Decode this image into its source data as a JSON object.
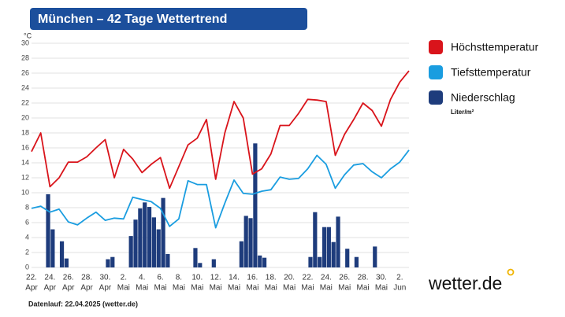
{
  "chart_data": {
    "type": "line",
    "title": "München – 42 Tage Wettertrend",
    "y_unit": "°C",
    "categories": [
      "22.",
      null,
      "24.",
      null,
      "26.",
      null,
      "28.",
      null,
      "30.",
      null,
      "2.",
      null,
      "4.",
      null,
      "6.",
      null,
      "8.",
      null,
      "10.",
      null,
      "12.",
      null,
      "14.",
      null,
      "16.",
      null,
      "18.",
      null,
      "20.",
      null,
      "22.",
      null,
      "24.",
      null,
      "26.",
      null,
      "28.",
      null,
      "30.",
      null,
      "2.",
      null
    ],
    "months": [
      "Apr",
      null,
      "Apr",
      null,
      "Apr",
      null,
      "Apr",
      null,
      "Apr",
      null,
      "Mai",
      null,
      "Mai",
      null,
      "Mai",
      null,
      "Mai",
      null,
      "Mai",
      null,
      "Mai",
      null,
      "Mai",
      null,
      "Mai",
      null,
      "Mai",
      null,
      "Mai",
      null,
      "Mai",
      null,
      "Mai",
      null,
      "Mai",
      null,
      "Mai",
      null,
      "Mai",
      null,
      "Jun",
      null
    ],
    "series": [
      {
        "name": "Höchsttemperatur",
        "color": "#d9141b",
        "values": [
          15.5,
          18,
          10.8,
          12,
          14.1,
          14.1,
          14.8,
          16,
          17.1,
          12,
          15.8,
          14.5,
          12.7,
          13.8,
          14.7,
          10.6,
          13.5,
          16.4,
          17.3,
          19.8,
          11.8,
          18,
          22.2,
          20,
          12.5,
          13.2,
          15.2,
          19,
          19,
          20.6,
          22.5,
          22.4,
          22.2,
          15,
          17.8,
          19.8,
          22,
          21,
          18.9,
          22.5,
          24.8,
          26.3
        ]
      },
      {
        "name": "Tiefsttemperatur",
        "color": "#1a9de0",
        "values": [
          7.9,
          8.2,
          7.4,
          7.8,
          6.1,
          5.7,
          6.6,
          7.4,
          6.3,
          6.6,
          6.5,
          9.4,
          9.1,
          8.8,
          7.9,
          5.5,
          6.5,
          11.6,
          11.1,
          11.1,
          5.3,
          8.6,
          11.7,
          9.9,
          9.8,
          10.2,
          10.4,
          12.1,
          11.8,
          11.9,
          13.2,
          15,
          13.8,
          10.6,
          12.4,
          13.7,
          13.9,
          12.8,
          12,
          13.2,
          14.1,
          15.7
        ]
      }
    ],
    "precipitation": {
      "name": "Niederschlag",
      "unit": "Liter/m²",
      "color": "#1e3c7c",
      "values": [
        0,
        0,
        0,
        9.8,
        5.1,
        0,
        3.5,
        1.2,
        0,
        0,
        0,
        0,
        0,
        0,
        0,
        0,
        1.1,
        1.4,
        0,
        0,
        0,
        4.2,
        6.4,
        7.9,
        8.7,
        8.1,
        6.7,
        5.1,
        9.3,
        1.8,
        0,
        0,
        0,
        0,
        0,
        2.6,
        0.6,
        0,
        0,
        1.1,
        0,
        0,
        0,
        0,
        0,
        3.5,
        6.9,
        6.6,
        16.6,
        1.6,
        1.3,
        0,
        0,
        0,
        0,
        0,
        0,
        0,
        0,
        0,
        1.4,
        7.4,
        1.4,
        5.4,
        5.4,
        3.4,
        6.8,
        0,
        2.5,
        0,
        1.4,
        0,
        0,
        0,
        2.8,
        0,
        0,
        0,
        0,
        0,
        0,
        0,
        0,
        0
      ]
    },
    "ylim": [
      0,
      30
    ],
    "yticks": [
      0,
      2,
      4,
      6,
      8,
      10,
      12,
      14,
      16,
      18,
      20,
      22,
      24,
      26,
      28,
      30
    ],
    "grid": true,
    "note": "Datenlauf: 22.04.2025 (wetter.de)",
    "logo": "wetter.de"
  }
}
